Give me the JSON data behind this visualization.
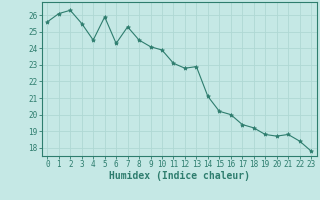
{
  "x": [
    0,
    1,
    2,
    3,
    4,
    5,
    6,
    7,
    8,
    9,
    10,
    11,
    12,
    13,
    14,
    15,
    16,
    17,
    18,
    19,
    20,
    21,
    22,
    23
  ],
  "y": [
    25.6,
    26.1,
    26.3,
    25.5,
    24.5,
    25.9,
    24.3,
    25.3,
    24.5,
    24.1,
    23.9,
    23.1,
    22.8,
    22.9,
    21.1,
    20.2,
    20.0,
    19.4,
    19.2,
    18.8,
    18.7,
    18.8,
    18.4,
    17.8
  ],
  "line_color": "#2e7d6e",
  "marker": "*",
  "marker_size": 3,
  "bg_color": "#c5e8e5",
  "grid_color": "#afd8d4",
  "xlabel": "Humidex (Indice chaleur)",
  "ylim": [
    17.5,
    26.8
  ],
  "xlim": [
    -0.5,
    23.5
  ],
  "yticks": [
    18,
    19,
    20,
    21,
    22,
    23,
    24,
    25,
    26
  ],
  "xticks": [
    0,
    1,
    2,
    3,
    4,
    5,
    6,
    7,
    8,
    9,
    10,
    11,
    12,
    13,
    14,
    15,
    16,
    17,
    18,
    19,
    20,
    21,
    22,
    23
  ],
  "tick_fontsize": 5.5,
  "xlabel_fontsize": 7
}
